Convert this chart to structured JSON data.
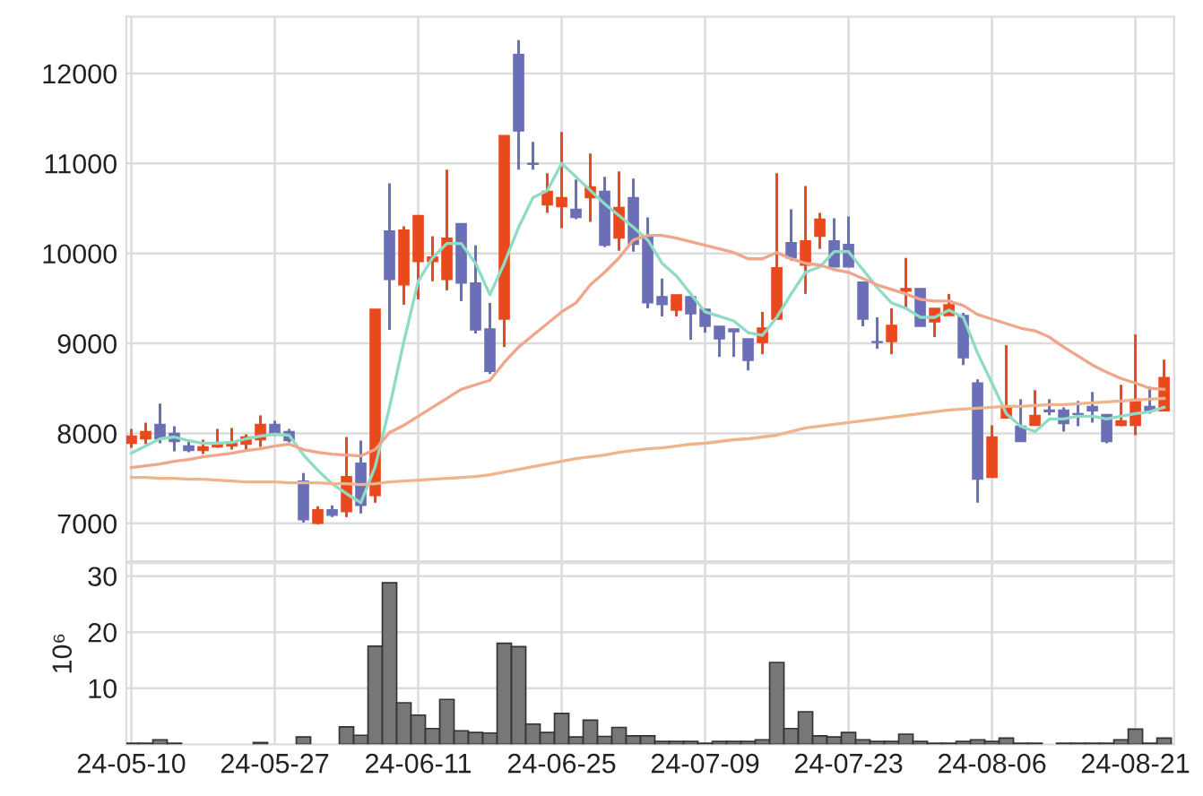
{
  "chart_data": [
    {
      "type": "candlestick",
      "ohlc": [
        [
          7890,
          8050,
          7840,
          7970
        ],
        [
          7940,
          8120,
          7880,
          8020
        ],
        [
          8100,
          8330,
          7890,
          7940
        ],
        [
          8000,
          8080,
          7800,
          7910
        ],
        [
          7860,
          7930,
          7790,
          7810
        ],
        [
          7810,
          7930,
          7770,
          7850
        ],
        [
          7850,
          8050,
          7840,
          7890
        ],
        [
          7860,
          8060,
          7820,
          7900
        ],
        [
          7880,
          7990,
          7810,
          7960
        ],
        [
          7930,
          8200,
          7850,
          8100
        ],
        [
          8100,
          8140,
          7970,
          8000
        ],
        [
          8020,
          8050,
          7900,
          7920
        ],
        [
          7470,
          7560,
          7010,
          7040
        ],
        [
          7000,
          7190,
          6990,
          7150
        ],
        [
          7150,
          7200,
          7070,
          7090
        ],
        [
          7130,
          7960,
          7070,
          7520
        ],
        [
          7670,
          7920,
          7110,
          7200
        ],
        [
          7310,
          9380,
          7230,
          9380
        ],
        [
          10250,
          10780,
          9150,
          9710
        ],
        [
          9650,
          10300,
          9430,
          10260
        ],
        [
          9910,
          10420,
          9490,
          10420
        ],
        [
          9910,
          10190,
          9690,
          9960
        ],
        [
          9710,
          10930,
          9590,
          10170
        ],
        [
          10330,
          10330,
          9470,
          9670
        ],
        [
          9670,
          10090,
          9110,
          9150
        ],
        [
          9160,
          9450,
          8660,
          8690
        ],
        [
          9270,
          11310,
          8960,
          11310
        ],
        [
          12210,
          12370,
          10930,
          11360
        ],
        [
          11000,
          11240,
          10930,
          10990
        ],
        [
          10540,
          10890,
          10450,
          10690
        ],
        [
          10520,
          11350,
          10280,
          10620
        ],
        [
          10490,
          10820,
          10380,
          10400
        ],
        [
          10620,
          11110,
          10350,
          10740
        ],
        [
          10690,
          10850,
          10070,
          10090
        ],
        [
          10170,
          10910,
          10030,
          10510
        ],
        [
          10620,
          10830,
          10020,
          10100
        ],
        [
          10200,
          10400,
          9390,
          9450
        ],
        [
          9520,
          9720,
          9300,
          9430
        ],
        [
          9370,
          9540,
          9300,
          9540
        ],
        [
          9520,
          9520,
          9040,
          9330
        ],
        [
          9380,
          9380,
          9120,
          9190
        ],
        [
          9190,
          9190,
          8850,
          9050
        ],
        [
          9160,
          9160,
          8850,
          9130
        ],
        [
          9050,
          9050,
          8700,
          8810
        ],
        [
          9010,
          9350,
          8880,
          9170
        ],
        [
          9270,
          10890,
          9260,
          9840
        ],
        [
          10120,
          10490,
          9920,
          9950
        ],
        [
          9870,
          10750,
          9550,
          10140
        ],
        [
          10190,
          10450,
          10050,
          10380
        ],
        [
          10140,
          10390,
          9850,
          9850
        ],
        [
          10100,
          10410,
          9850,
          9850
        ],
        [
          9680,
          9680,
          9190,
          9270
        ],
        [
          9020,
          9290,
          8940,
          9010
        ],
        [
          9020,
          9390,
          8880,
          9200
        ],
        [
          9580,
          9950,
          9390,
          9610
        ],
        [
          9610,
          9610,
          9190,
          9190
        ],
        [
          9240,
          9390,
          9070,
          9390
        ],
        [
          9310,
          9550,
          9310,
          9430
        ],
        [
          9310,
          9340,
          8760,
          8840
        ],
        [
          8560,
          8600,
          7230,
          7490
        ],
        [
          7510,
          8090,
          7510,
          7960
        ],
        [
          8170,
          8980,
          8170,
          8280
        ],
        [
          8080,
          8380,
          7910,
          7910
        ],
        [
          8090,
          8480,
          8090,
          8200
        ],
        [
          8260,
          8380,
          8200,
          8240
        ],
        [
          8260,
          8290,
          8020,
          8110
        ],
        [
          8220,
          8360,
          8080,
          8210
        ],
        [
          8300,
          8460,
          8120,
          8250
        ],
        [
          8210,
          8210,
          7890,
          7910
        ],
        [
          8090,
          8540,
          8080,
          8140
        ],
        [
          8090,
          9100,
          7980,
          8380
        ],
        [
          8300,
          8520,
          8220,
          8250
        ],
        [
          8250,
          8820,
          8250,
          8620
        ]
      ],
      "colors": [
        "#e8491d",
        "#e8491d",
        "#6b6fb5",
        "#6b6fb5",
        "#6b6fb5",
        "#e8491d",
        "#e8491d",
        "#e8491d",
        "#e8491d",
        "#e8491d",
        "#6b6fb5",
        "#6b6fb5",
        "#6b6fb5",
        "#e8491d",
        "#6b6fb5",
        "#e8491d",
        "#6b6fb5",
        "#e8491d",
        "#6b6fb5",
        "#e8491d",
        "#e8491d",
        "#e8491d",
        "#e8491d",
        "#6b6fb5",
        "#6b6fb5",
        "#6b6fb5",
        "#e8491d",
        "#6b6fb5",
        "#6b6fb5",
        "#e8491d",
        "#e8491d",
        "#6b6fb5",
        "#e8491d",
        "#6b6fb5",
        "#e8491d",
        "#6b6fb5",
        "#6b6fb5",
        "#6b6fb5",
        "#e8491d",
        "#6b6fb5",
        "#6b6fb5",
        "#6b6fb5",
        "#6b6fb5",
        "#6b6fb5",
        "#e8491d",
        "#e8491d",
        "#6b6fb5",
        "#e8491d",
        "#e8491d",
        "#6b6fb5",
        "#6b6fb5",
        "#6b6fb5",
        "#6b6fb5",
        "#e8491d",
        "#e8491d",
        "#6b6fb5",
        "#e8491d",
        "#e8491d",
        "#6b6fb5",
        "#6b6fb5",
        "#e8491d",
        "#e8491d",
        "#6b6fb5",
        "#e8491d",
        "#6b6fb5",
        "#6b6fb5",
        "#6b6fb5",
        "#6b6fb5",
        "#6b6fb5",
        "#e8491d",
        "#e8491d",
        "#6b6fb5",
        "#e8491d"
      ],
      "series": [
        {
          "type": "line",
          "color": "#8fdcc2",
          "values": [
            7780,
            7860,
            7940,
            7960,
            7920,
            7890,
            7890,
            7900,
            7940,
            7970,
            7990,
            7980,
            7760,
            7590,
            7440,
            7330,
            7230,
            7630,
            8290,
            9020,
            9690,
            9950,
            10110,
            10110,
            9890,
            9540,
            9890,
            10290,
            10620,
            10700,
            11000,
            10850,
            10700,
            10550,
            10420,
            10290,
            10150,
            9890,
            9750,
            9550,
            9350,
            9300,
            9250,
            9120,
            9090,
            9290,
            9550,
            9790,
            9850,
            10020,
            10020,
            9820,
            9620,
            9450,
            9390,
            9290,
            9290,
            9370,
            9290,
            8890,
            8560,
            8220,
            8080,
            8020,
            8160,
            8160,
            8190,
            8190,
            8160,
            8190,
            8220,
            8240,
            8290
          ]
        },
        {
          "type": "line",
          "color": "#f0a68a",
          "values": [
            7620,
            7640,
            7660,
            7690,
            7710,
            7740,
            7760,
            7780,
            7810,
            7830,
            7860,
            7880,
            7820,
            7790,
            7770,
            7760,
            7750,
            7820,
            8010,
            8090,
            8190,
            8290,
            8390,
            8490,
            8540,
            8590,
            8790,
            8960,
            9090,
            9220,
            9350,
            9450,
            9650,
            9790,
            9950,
            10150,
            10200,
            10200,
            10170,
            10130,
            10090,
            10050,
            10010,
            9940,
            9940,
            10010,
            9940,
            9890,
            9870,
            9820,
            9790,
            9720,
            9650,
            9600,
            9550,
            9490,
            9470,
            9470,
            9420,
            9320,
            9270,
            9220,
            9170,
            9140,
            9070,
            8960,
            8860,
            8760,
            8680,
            8610,
            8560,
            8500,
            8490
          ]
        },
        {
          "type": "line",
          "color": "#efb48c",
          "values": [
            7510,
            7510,
            7500,
            7500,
            7490,
            7490,
            7480,
            7470,
            7460,
            7460,
            7460,
            7450,
            7450,
            7450,
            7440,
            7440,
            7430,
            7440,
            7460,
            7470,
            7480,
            7490,
            7500,
            7510,
            7520,
            7540,
            7570,
            7600,
            7630,
            7660,
            7690,
            7720,
            7740,
            7760,
            7790,
            7810,
            7830,
            7840,
            7860,
            7880,
            7890,
            7910,
            7930,
            7940,
            7960,
            7980,
            8020,
            8060,
            8080,
            8100,
            8120,
            8140,
            8160,
            8180,
            8200,
            8220,
            8240,
            8260,
            8270,
            8280,
            8290,
            8300,
            8300,
            8310,
            8320,
            8320,
            8330,
            8340,
            8350,
            8360,
            8370,
            8380,
            8390
          ]
        }
      ],
      "ylim": [
        6580,
        12630
      ],
      "yticks": [
        7000,
        8000,
        9000,
        10000,
        11000,
        12000
      ],
      "grid": true,
      "tick_labels": "y"
    },
    {
      "type": "bar",
      "categories": [
        "24-05-10",
        null,
        null,
        null,
        null,
        null,
        null,
        null,
        null,
        null,
        "24-05-27",
        null,
        null,
        null,
        null,
        null,
        null,
        null,
        null,
        null,
        "24-06-11",
        null,
        null,
        null,
        null,
        null,
        null,
        null,
        null,
        null,
        "24-06-25",
        null,
        null,
        null,
        null,
        null,
        null,
        null,
        null,
        null,
        "24-07-09",
        null,
        null,
        null,
        null,
        null,
        null,
        null,
        null,
        null,
        "24-07-23",
        null,
        null,
        null,
        null,
        null,
        null,
        null,
        null,
        null,
        "24-08-06",
        null,
        null,
        null,
        null,
        null,
        null,
        null,
        null,
        null,
        "24-08-21",
        null,
        null
      ],
      "values": [
        0.2,
        0.2,
        0.8,
        0.2,
        0,
        0,
        0,
        0,
        0,
        0.3,
        0,
        0,
        1.3,
        0,
        0,
        3.1,
        1.6,
        17.5,
        28.8,
        7.4,
        5.2,
        2.8,
        8.0,
        2.4,
        2.1,
        2.0,
        18.0,
        17.4,
        3.6,
        2.1,
        5.5,
        1.3,
        4.3,
        1.4,
        3.0,
        1.5,
        1.5,
        0.5,
        0.5,
        0.5,
        0.2,
        0.5,
        0.5,
        0.5,
        0.8,
        14.6,
        2.8,
        5.8,
        1.5,
        1.3,
        2.1,
        0.8,
        0.5,
        0.5,
        1.8,
        0.5,
        0.2,
        0.2,
        0.5,
        0.8,
        0.5,
        1.1,
        0.2,
        0.2,
        0,
        0.2,
        0.2,
        0.2,
        0.2,
        0.8,
        2.7,
        0.2,
        1.1
      ],
      "color": "#777777",
      "ylabel": "10⁶",
      "ylim": [
        0,
        32.3
      ],
      "yticks": [
        10,
        20,
        30
      ],
      "grid": true
    }
  ]
}
